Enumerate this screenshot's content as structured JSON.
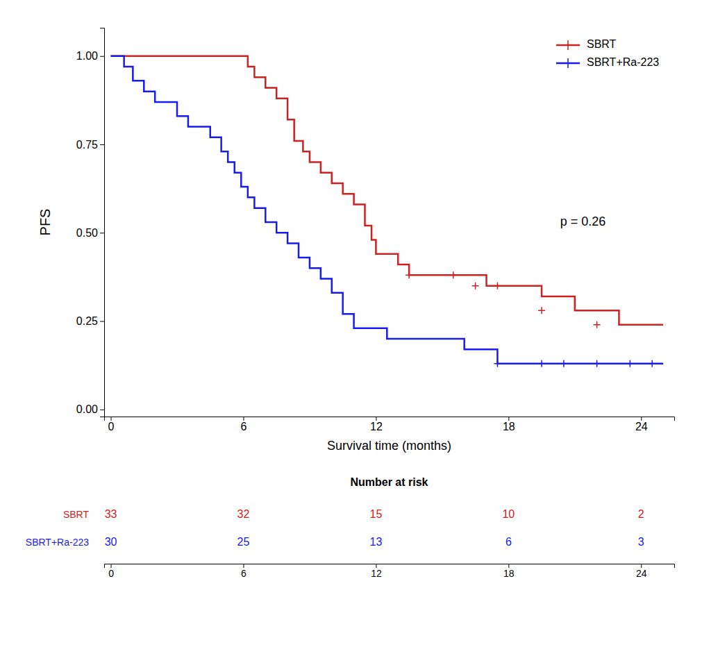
{
  "chart_data": [
    {
      "type": "step",
      "xlabel": "Survival time (months)",
      "ylabel": "PFS",
      "annotation": "p = 0.26",
      "xlim": [
        -0.3,
        25.5
      ],
      "ylim": [
        -0.02,
        1.08
      ],
      "xticks": [
        0,
        6,
        12,
        18,
        24
      ],
      "yticks": [
        {
          "value": 0.0,
          "label": "0.00"
        },
        0.25,
        {
          "value": 0.5,
          "label": "0.50"
        },
        0.75,
        {
          "value": 1.0,
          "label": "1.00"
        }
      ],
      "legend": "upper right",
      "series": [
        {
          "name": "SBRT",
          "color": "#cc2222",
          "x": [
            0,
            0.5,
            1.0,
            1.5,
            2.0,
            2.5,
            3.0,
            3.5,
            4.0,
            4.5,
            5.0,
            5.3,
            5.7,
            6.0,
            6.2,
            6.5,
            7.0,
            7.5,
            8.0,
            8.3,
            8.7,
            9.0,
            9.5,
            10.0,
            10.5,
            11.0,
            11.5,
            11.8,
            12.0,
            13.0,
            13.5,
            14.0,
            15.0,
            16.0,
            17.0,
            17.5,
            18.5,
            19.5,
            20.0,
            21.0,
            22.0,
            23.0,
            23.5,
            24.0,
            25.0
          ],
          "values": [
            1.0,
            1.0,
            1.0,
            1.0,
            1.0,
            1.0,
            1.0,
            1.0,
            1.0,
            1.0,
            1.0,
            1.0,
            1.0,
            1.0,
            0.97,
            0.94,
            0.91,
            0.88,
            0.82,
            0.76,
            0.73,
            0.7,
            0.67,
            0.64,
            0.61,
            0.58,
            0.52,
            0.48,
            0.44,
            0.41,
            0.38,
            0.38,
            0.38,
            0.38,
            0.35,
            0.35,
            0.35,
            0.32,
            0.32,
            0.28,
            0.28,
            0.24,
            0.24,
            0.24,
            0.24
          ],
          "censor_x": [
            13.5,
            15.5,
            16.5,
            17.5,
            19.5,
            22.0
          ],
          "censor_values": [
            0.38,
            0.38,
            0.35,
            0.35,
            0.28,
            0.24
          ]
        },
        {
          "name": "SBRT+Ra-223",
          "color": "#1a1aee",
          "x": [
            0,
            0.3,
            0.6,
            1.0,
            1.5,
            2.0,
            2.5,
            3.0,
            3.5,
            4.0,
            4.5,
            5.0,
            5.3,
            5.6,
            5.9,
            6.2,
            6.5,
            7.0,
            7.5,
            8.0,
            8.5,
            9.0,
            9.5,
            10.0,
            10.5,
            11.0,
            11.5,
            11.8,
            12.0,
            12.5,
            13.0,
            14.0,
            15.0,
            16.0,
            17.0,
            17.5,
            18.0,
            19.0,
            19.5,
            20.0,
            21.0,
            22.0,
            23.0,
            24.0,
            25.0
          ],
          "values": [
            1.0,
            1.0,
            0.97,
            0.93,
            0.9,
            0.87,
            0.87,
            0.83,
            0.8,
            0.8,
            0.77,
            0.73,
            0.7,
            0.67,
            0.63,
            0.6,
            0.57,
            0.53,
            0.5,
            0.47,
            0.43,
            0.4,
            0.37,
            0.33,
            0.27,
            0.23,
            0.23,
            0.23,
            0.23,
            0.2,
            0.2,
            0.2,
            0.2,
            0.17,
            0.17,
            0.13,
            0.13,
            0.13,
            0.13,
            0.13,
            0.13,
            0.13,
            0.13,
            0.13,
            0.13
          ],
          "censor_x": [
            17.5,
            19.5,
            20.5,
            22.0,
            23.5,
            24.5
          ],
          "censor_values": [
            0.13,
            0.13,
            0.13,
            0.13,
            0.13,
            0.13
          ]
        }
      ]
    },
    {
      "type": "table",
      "title": "Number at risk",
      "x": [
        0,
        6,
        12,
        18,
        24
      ],
      "xlim": [
        -0.3,
        25.5
      ],
      "xticks": [
        0,
        6,
        12,
        18,
        24
      ],
      "series": [
        {
          "name": "SBRT",
          "color": "#cc2222",
          "values": [
            33,
            32,
            15,
            10,
            2
          ]
        },
        {
          "name": "SBRT+Ra-223",
          "color": "#1a1aee",
          "values": [
            30,
            25,
            13,
            6,
            3
          ]
        }
      ]
    }
  ]
}
